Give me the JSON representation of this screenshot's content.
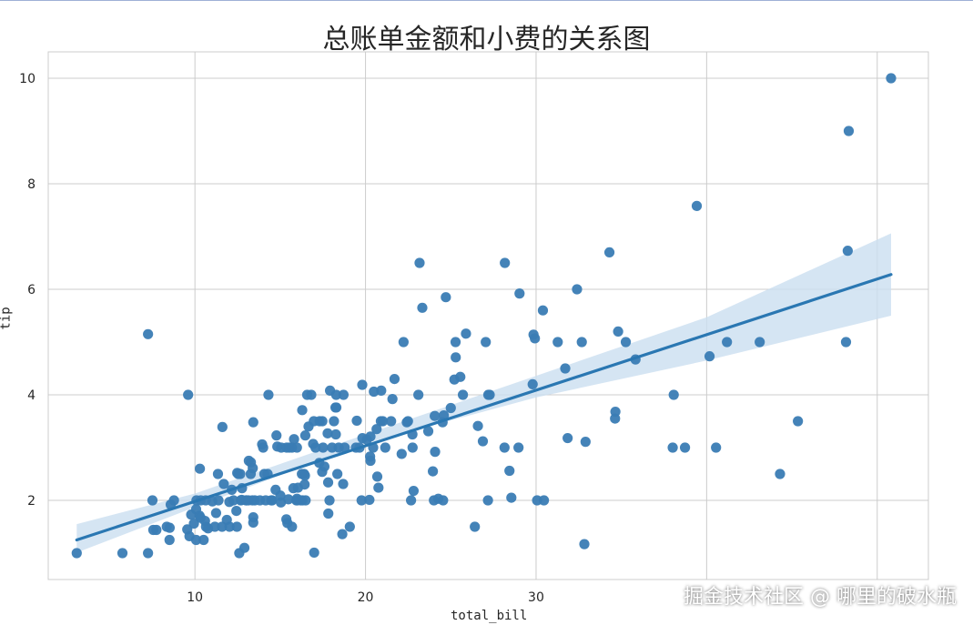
{
  "chart_data": {
    "type": "scatter",
    "title": "总账单金额和小费的关系图",
    "xlabel": "total_bill",
    "ylabel": "tip",
    "xlim": [
      1.4,
      53
    ],
    "ylim": [
      0.5,
      10.5
    ],
    "xticks": [
      "10",
      "20",
      "30"
    ],
    "yticks": [
      "2",
      "4",
      "6",
      "8",
      "10"
    ],
    "grid": true,
    "point_color": "#3a7cb4",
    "line_color": "#2a77b2",
    "band_color": "#cbdff0",
    "regression": {
      "x": [
        3.07,
        50.81
      ],
      "y": [
        1.25,
        6.28
      ]
    },
    "confidence_band": {
      "x": [
        3.07,
        10,
        20,
        30,
        40,
        50.81
      ],
      "lower": [
        1.01,
        1.87,
        3.08,
        3.95,
        4.65,
        5.5
      ],
      "upper": [
        1.55,
        2.13,
        3.25,
        4.36,
        5.47,
        7.06
      ]
    },
    "points": [
      [
        3.07,
        1.0
      ],
      [
        5.75,
        1.0
      ],
      [
        7.25,
        1.0
      ],
      [
        7.25,
        5.15
      ],
      [
        7.51,
        2.0
      ],
      [
        7.56,
        1.44
      ],
      [
        7.74,
        1.44
      ],
      [
        8.35,
        1.5
      ],
      [
        8.51,
        1.25
      ],
      [
        8.52,
        1.48
      ],
      [
        8.58,
        1.92
      ],
      [
        8.77,
        2.0
      ],
      [
        9.55,
        1.45
      ],
      [
        9.6,
        4.0
      ],
      [
        9.68,
        1.32
      ],
      [
        9.78,
        1.73
      ],
      [
        9.94,
        1.56
      ],
      [
        10.07,
        1.83
      ],
      [
        10.07,
        1.25
      ],
      [
        10.09,
        2.0
      ],
      [
        10.27,
        1.71
      ],
      [
        10.29,
        2.6
      ],
      [
        10.33,
        1.67
      ],
      [
        10.34,
        2.0
      ],
      [
        10.51,
        1.25
      ],
      [
        10.59,
        1.61
      ],
      [
        10.63,
        2.0
      ],
      [
        10.65,
        1.5
      ],
      [
        10.77,
        1.47
      ],
      [
        11.02,
        1.98
      ],
      [
        11.17,
        1.5
      ],
      [
        11.24,
        1.76
      ],
      [
        11.35,
        2.5
      ],
      [
        11.38,
        2.0
      ],
      [
        11.59,
        1.5
      ],
      [
        11.61,
        3.39
      ],
      [
        11.69,
        2.31
      ],
      [
        11.87,
        1.63
      ],
      [
        12.02,
        1.97
      ],
      [
        12.03,
        1.5
      ],
      [
        12.16,
        2.2
      ],
      [
        12.26,
        2.0
      ],
      [
        12.43,
        1.8
      ],
      [
        12.46,
        1.5
      ],
      [
        12.48,
        2.52
      ],
      [
        12.54,
        2.5
      ],
      [
        12.6,
        1.0
      ],
      [
        12.66,
        2.5
      ],
      [
        12.69,
        2.0
      ],
      [
        12.74,
        2.01
      ],
      [
        12.76,
        2.23
      ],
      [
        12.9,
        1.1
      ],
      [
        13.0,
        2.0
      ],
      [
        13.03,
        2.0
      ],
      [
        13.13,
        2.0
      ],
      [
        13.16,
        2.75
      ],
      [
        13.27,
        2.5
      ],
      [
        13.28,
        2.72
      ],
      [
        13.37,
        2.0
      ],
      [
        13.39,
        2.61
      ],
      [
        13.42,
        1.58
      ],
      [
        13.42,
        3.48
      ],
      [
        13.42,
        1.68
      ],
      [
        13.51,
        2.0
      ],
      [
        13.81,
        2.0
      ],
      [
        13.94,
        3.06
      ],
      [
        14.0,
        3.0
      ],
      [
        14.07,
        2.5
      ],
      [
        14.15,
        2.0
      ],
      [
        14.26,
        2.5
      ],
      [
        14.31,
        4.0
      ],
      [
        14.48,
        2.0
      ],
      [
        14.52,
        2.0
      ],
      [
        14.73,
        2.2
      ],
      [
        14.78,
        3.23
      ],
      [
        14.83,
        3.02
      ],
      [
        15.01,
        2.09
      ],
      [
        15.04,
        1.96
      ],
      [
        15.06,
        3.0
      ],
      [
        15.36,
        1.64
      ],
      [
        15.38,
        3.0
      ],
      [
        15.42,
        1.57
      ],
      [
        15.48,
        2.02
      ],
      [
        15.53,
        3.0
      ],
      [
        15.69,
        1.5
      ],
      [
        15.69,
        3.0
      ],
      [
        15.77,
        2.23
      ],
      [
        15.81,
        3.16
      ],
      [
        15.95,
        2.0
      ],
      [
        15.98,
        2.03
      ],
      [
        15.98,
        3.0
      ],
      [
        16.0,
        2.0
      ],
      [
        16.04,
        2.24
      ],
      [
        16.21,
        2.0
      ],
      [
        16.27,
        2.5
      ],
      [
        16.29,
        3.71
      ],
      [
        16.31,
        2.0
      ],
      [
        16.4,
        2.5
      ],
      [
        16.43,
        2.3
      ],
      [
        16.45,
        2.47
      ],
      [
        16.47,
        3.23
      ],
      [
        16.49,
        2.0
      ],
      [
        16.58,
        4.0
      ],
      [
        16.66,
        3.4
      ],
      [
        16.82,
        4.0
      ],
      [
        16.93,
        3.07
      ],
      [
        16.97,
        3.5
      ],
      [
        16.99,
        1.01
      ],
      [
        17.07,
        3.0
      ],
      [
        17.29,
        2.71
      ],
      [
        17.31,
        3.5
      ],
      [
        17.46,
        2.54
      ],
      [
        17.47,
        3.5
      ],
      [
        17.51,
        3.0
      ],
      [
        17.59,
        2.64
      ],
      [
        17.78,
        3.27
      ],
      [
        17.81,
        2.34
      ],
      [
        17.82,
        1.75
      ],
      [
        17.89,
        2.0
      ],
      [
        17.92,
        4.08
      ],
      [
        18.04,
        3.0
      ],
      [
        18.15,
        3.5
      ],
      [
        18.24,
        3.76
      ],
      [
        18.26,
        3.25
      ],
      [
        18.28,
        4.0
      ],
      [
        18.29,
        3.76
      ],
      [
        18.35,
        2.5
      ],
      [
        18.43,
        3.0
      ],
      [
        18.64,
        1.36
      ],
      [
        18.69,
        2.31
      ],
      [
        18.71,
        4.0
      ],
      [
        18.78,
        3.0
      ],
      [
        19.08,
        1.5
      ],
      [
        19.44,
        3.0
      ],
      [
        19.49,
        3.51
      ],
      [
        19.65,
        3.0
      ],
      [
        19.77,
        2.0
      ],
      [
        19.81,
        4.19
      ],
      [
        19.82,
        3.18
      ],
      [
        20.08,
        3.15
      ],
      [
        20.23,
        2.01
      ],
      [
        20.27,
        2.83
      ],
      [
        20.29,
        3.21
      ],
      [
        20.29,
        2.75
      ],
      [
        20.45,
        3.0
      ],
      [
        20.49,
        4.06
      ],
      [
        20.65,
        3.35
      ],
      [
        20.69,
        2.45
      ],
      [
        20.76,
        2.24
      ],
      [
        20.9,
        3.5
      ],
      [
        20.92,
        4.08
      ],
      [
        21.01,
        3.5
      ],
      [
        21.16,
        3.0
      ],
      [
        21.5,
        3.5
      ],
      [
        21.58,
        3.92
      ],
      [
        21.7,
        4.3
      ],
      [
        22.12,
        2.88
      ],
      [
        22.23,
        5.0
      ],
      [
        22.42,
        3.48
      ],
      [
        22.49,
        3.5
      ],
      [
        22.67,
        2.0
      ],
      [
        22.75,
        3.25
      ],
      [
        22.76,
        3.0
      ],
      [
        22.82,
        2.18
      ],
      [
        23.1,
        4.0
      ],
      [
        23.17,
        6.5
      ],
      [
        23.33,
        5.65
      ],
      [
        23.68,
        3.31
      ],
      [
        23.95,
        2.55
      ],
      [
        24.01,
        2.0
      ],
      [
        24.06,
        3.6
      ],
      [
        24.08,
        2.92
      ],
      [
        24.27,
        2.03
      ],
      [
        24.52,
        3.48
      ],
      [
        24.55,
        2.0
      ],
      [
        24.59,
        3.61
      ],
      [
        24.71,
        5.85
      ],
      [
        25.0,
        3.75
      ],
      [
        25.21,
        4.29
      ],
      [
        25.28,
        5.0
      ],
      [
        25.29,
        4.71
      ],
      [
        25.56,
        4.34
      ],
      [
        25.71,
        4.0
      ],
      [
        25.89,
        5.16
      ],
      [
        26.41,
        1.5
      ],
      [
        26.59,
        3.41
      ],
      [
        26.88,
        3.12
      ],
      [
        27.05,
        5.0
      ],
      [
        27.18,
        2.0
      ],
      [
        27.2,
        4.0
      ],
      [
        27.28,
        4.0
      ],
      [
        28.15,
        3.0
      ],
      [
        28.17,
        6.5
      ],
      [
        28.44,
        2.56
      ],
      [
        28.55,
        2.05
      ],
      [
        28.97,
        3.0
      ],
      [
        29.03,
        5.92
      ],
      [
        29.8,
        4.2
      ],
      [
        29.85,
        5.14
      ],
      [
        29.93,
        5.07
      ],
      [
        30.06,
        2.0
      ],
      [
        30.4,
        5.6
      ],
      [
        30.46,
        2.0
      ],
      [
        31.27,
        5.0
      ],
      [
        31.71,
        4.5
      ],
      [
        31.85,
        3.18
      ],
      [
        32.4,
        6.0
      ],
      [
        32.68,
        5.0
      ],
      [
        32.83,
        1.17
      ],
      [
        32.9,
        3.11
      ],
      [
        34.3,
        6.7
      ],
      [
        34.63,
        3.55
      ],
      [
        34.65,
        3.68
      ],
      [
        34.81,
        5.2
      ],
      [
        35.26,
        5.0
      ],
      [
        35.83,
        4.67
      ],
      [
        38.01,
        3.0
      ],
      [
        38.07,
        4.0
      ],
      [
        38.73,
        3.0
      ],
      [
        39.42,
        7.58
      ],
      [
        40.17,
        4.73
      ],
      [
        40.55,
        3.0
      ],
      [
        41.19,
        5.0
      ],
      [
        43.11,
        5.0
      ],
      [
        44.3,
        2.5
      ],
      [
        45.35,
        3.5
      ],
      [
        48.17,
        5.0
      ],
      [
        48.27,
        6.73
      ],
      [
        48.33,
        9.0
      ],
      [
        50.81,
        10.0
      ]
    ],
    "watermark": "掘金技术社区 @ 哪里的破水瓶"
  }
}
